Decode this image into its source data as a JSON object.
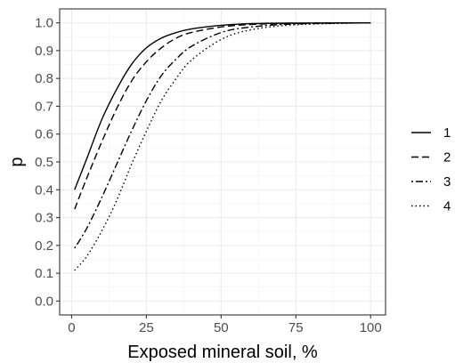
{
  "chart_data": {
    "type": "line",
    "title": "",
    "xlabel": "Exposed mineral soil, %",
    "ylabel": "p",
    "xlim": [
      -4,
      105
    ],
    "ylim": [
      -0.05,
      1.05
    ],
    "x_ticks": [
      "0",
      "25",
      "50",
      "75",
      "100"
    ],
    "y_ticks": [
      "0.0",
      "0.1",
      "0.2",
      "0.3",
      "0.4",
      "0.5",
      "0.6",
      "0.7",
      "0.8",
      "0.9",
      "1.0"
    ],
    "grid": true,
    "legend_position": "right",
    "series": [
      {
        "name": "1",
        "style": "solid",
        "x": [
          1,
          5,
          10,
          15,
          20,
          25,
          30,
          35,
          40,
          50,
          60,
          75,
          100
        ],
        "y": [
          0.4,
          0.51,
          0.65,
          0.76,
          0.85,
          0.91,
          0.945,
          0.965,
          0.978,
          0.991,
          0.997,
          0.999,
          1.0
        ]
      },
      {
        "name": "2",
        "style": "dashed",
        "x": [
          1,
          5,
          10,
          15,
          20,
          25,
          30,
          35,
          40,
          50,
          60,
          75,
          100
        ],
        "y": [
          0.33,
          0.44,
          0.57,
          0.69,
          0.79,
          0.86,
          0.91,
          0.945,
          0.965,
          0.985,
          0.994,
          0.998,
          1.0
        ]
      },
      {
        "name": "3",
        "style": "dotdash",
        "x": [
          1,
          5,
          10,
          15,
          20,
          25,
          30,
          35,
          40,
          50,
          60,
          75,
          100
        ],
        "y": [
          0.19,
          0.26,
          0.37,
          0.49,
          0.61,
          0.72,
          0.81,
          0.87,
          0.915,
          0.965,
          0.985,
          0.996,
          1.0
        ]
      },
      {
        "name": "4",
        "style": "dotted",
        "x": [
          1,
          5,
          10,
          15,
          20,
          25,
          30,
          35,
          40,
          50,
          60,
          75,
          100
        ],
        "y": [
          0.11,
          0.16,
          0.25,
          0.36,
          0.49,
          0.61,
          0.72,
          0.8,
          0.865,
          0.94,
          0.975,
          0.993,
          1.0
        ]
      }
    ]
  }
}
